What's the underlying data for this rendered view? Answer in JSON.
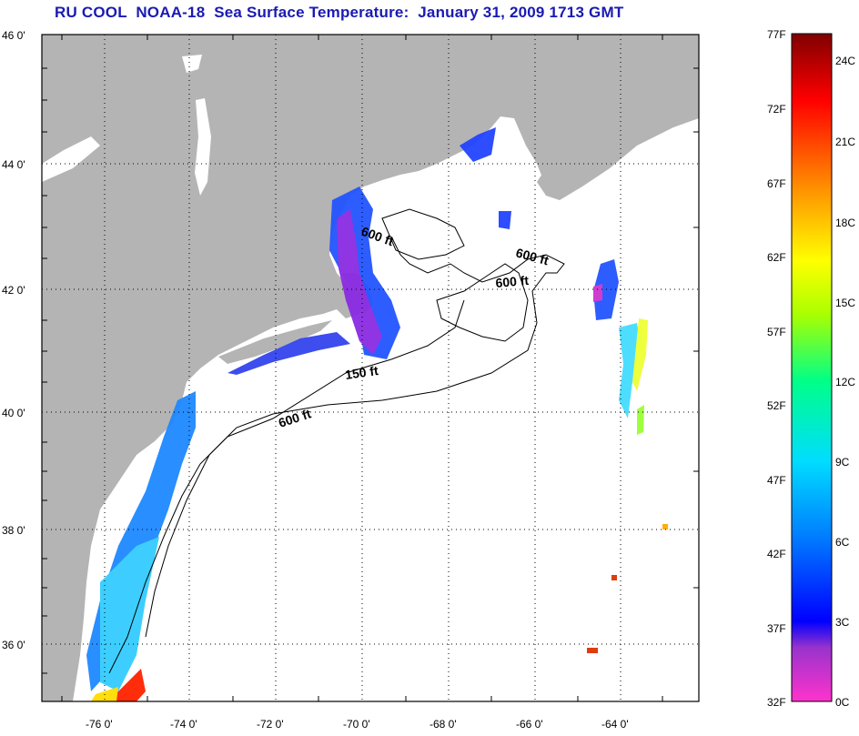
{
  "title": "RU COOL  NOAA-18  Sea Surface Temperature:  January 31, 2009 1713 GMT",
  "map": {
    "lon_labels": [
      "-76 0'",
      "-74 0'",
      "-72 0'",
      "-70 0'",
      "-68 0'",
      "-66 0'",
      "-64 0'"
    ],
    "lat_labels": [
      "46 0'",
      "44 0'",
      "42 0'",
      "40 0'",
      "38 0'",
      "36 0'"
    ],
    "contour_labels": [
      "600 ft",
      "600 ft",
      "600 ft",
      "150 ft",
      "600 ft"
    ],
    "land_color": "#b4b4b4",
    "ocean_color": "#ffffff"
  },
  "colorbar": {
    "fahrenheit_labels": [
      "77F",
      "72F",
      "67F",
      "62F",
      "57F",
      "52F",
      "47F",
      "42F",
      "37F",
      "32F"
    ],
    "celsius_labels": [
      "24C",
      "21C",
      "18C",
      "15C",
      "12C",
      "9C",
      "6C",
      "3C",
      "0C"
    ],
    "colors": [
      "#ff33cc",
      "#9933cc",
      "#0000ff",
      "#0080ff",
      "#00ddff",
      "#00ff88",
      "#aaff00",
      "#ffff00",
      "#ff9900",
      "#ff0000",
      "#800000"
    ]
  }
}
